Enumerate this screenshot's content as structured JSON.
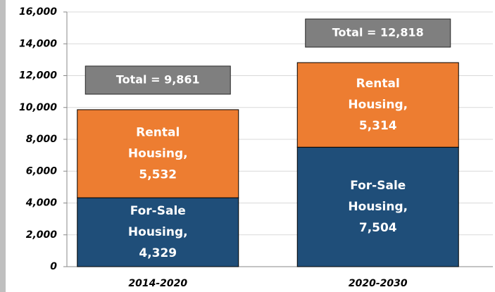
{
  "chart_data": {
    "type": "stacked_bar",
    "categories": [
      "2014-2020",
      "2020-2030"
    ],
    "series": [
      {
        "name": "For-Sale Housing,",
        "color": "#1f4e79",
        "values": [
          4329,
          7504
        ],
        "value_labels": [
          "4,329",
          "7,504"
        ]
      },
      {
        "name": "Rental Housing,",
        "color": "#ed7d31",
        "values": [
          5532,
          5314
        ],
        "value_labels": [
          "5,532",
          "5,314"
        ]
      }
    ],
    "annotations": [
      "Total = 9,861",
      "Total = 12,818"
    ],
    "annotation_color": "#7f7f7f",
    "ylim": [
      0,
      16000
    ],
    "yticks": [
      0,
      {
        "value": 2000,
        "label": "2,000"
      },
      {
        "value": 4000,
        "label": "4,000"
      },
      {
        "value": 6000,
        "label": "6,000"
      },
      {
        "value": 8000,
        "label": "8,000"
      },
      {
        "value": 10000,
        "label": "10,000"
      },
      {
        "value": 12000,
        "label": "12,000"
      },
      {
        "value": 14000,
        "label": "14,000"
      },
      {
        "value": 16000,
        "label": "16,000"
      }
    ],
    "grid": true
  }
}
